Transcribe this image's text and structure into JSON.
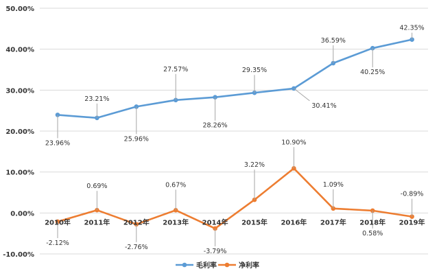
{
  "chart_data": {
    "type": "line",
    "categories": [
      "2010年",
      "2011年",
      "2012年",
      "2013年",
      "2014年",
      "2015年",
      "2016年",
      "2017年",
      "2018年",
      "2019年"
    ],
    "series": [
      {
        "name": "毛利率",
        "color": "#5b9bd5",
        "values": [
          23.96,
          23.21,
          25.96,
          27.57,
          28.26,
          29.35,
          30.41,
          36.59,
          40.25,
          42.35
        ],
        "labels": [
          "23.96%",
          "23.21%",
          "25.96%",
          "27.57%",
          "28.26%",
          "29.35%",
          "30.41%",
          "36.59%",
          "40.25%",
          "42.35%"
        ]
      },
      {
        "name": "净利率",
        "color": "#ed7d31",
        "values": [
          -2.12,
          0.69,
          -2.76,
          0.67,
          -3.79,
          3.22,
          10.9,
          1.09,
          0.58,
          -0.89
        ],
        "labels": [
          "-2.12%",
          "0.69%",
          "-2.76%",
          "0.67%",
          "-3.79%",
          "3.22%",
          "10.90%",
          "1.09%",
          "0.58%",
          "-0.89%"
        ]
      }
    ],
    "ylim": [
      -10,
      50
    ],
    "yticks": [
      50,
      40,
      30,
      20,
      10,
      0,
      -10
    ],
    "ytick_labels": [
      "50.00%",
      "40.00%",
      "30.00%",
      "20.00%",
      "10.00%",
      "0.00%",
      "-10.00%"
    ],
    "grid": true,
    "legend_position": "bottom"
  }
}
